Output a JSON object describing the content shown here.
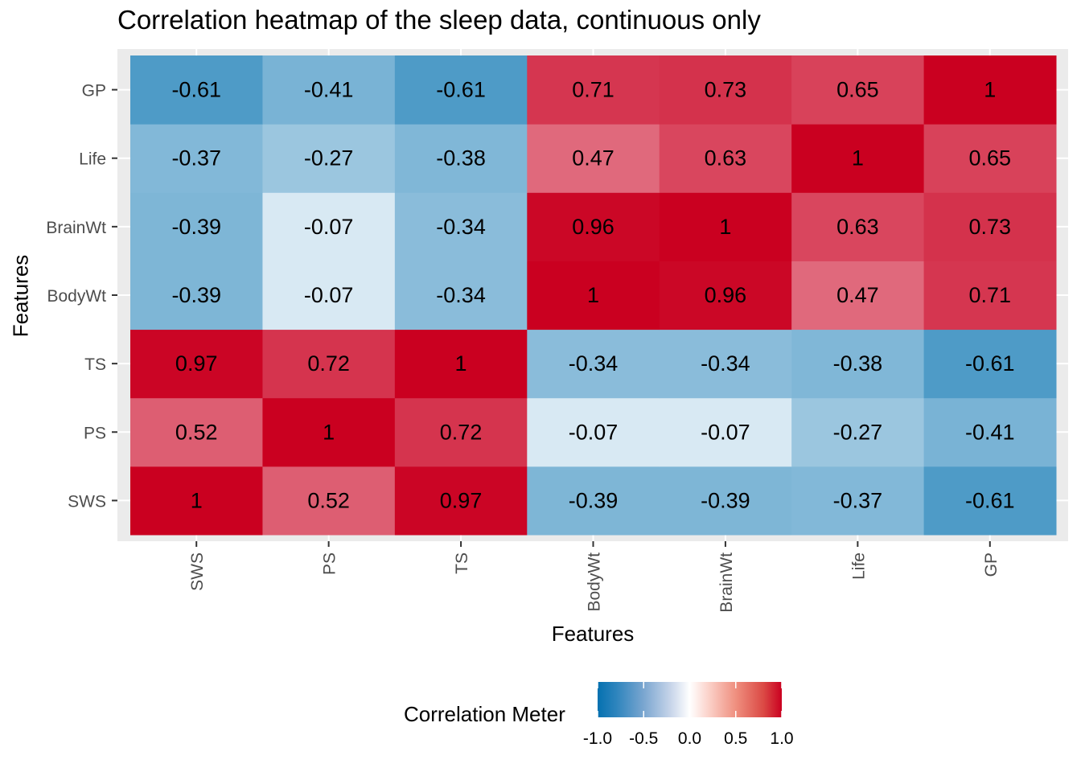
{
  "chart_data": {
    "type": "heatmap",
    "title": "Correlation heatmap of the sleep data, continuous only",
    "xlabel": "Features",
    "ylabel": "Features",
    "x_categories": [
      "SWS",
      "PS",
      "TS",
      "BodyWt",
      "BrainWt",
      "Life",
      "GP"
    ],
    "y_categories": [
      "SWS",
      "PS",
      "TS",
      "BodyWt",
      "BrainWt",
      "Life",
      "GP"
    ],
    "matrix": [
      [
        1,
        0.52,
        0.97,
        -0.39,
        -0.39,
        -0.37,
        -0.61
      ],
      [
        0.52,
        1,
        0.72,
        -0.07,
        -0.07,
        -0.27,
        -0.41
      ],
      [
        0.97,
        0.72,
        1,
        -0.34,
        -0.34,
        -0.38,
        -0.61
      ],
      [
        -0.39,
        -0.07,
        -0.34,
        1,
        0.96,
        0.47,
        0.71
      ],
      [
        -0.39,
        -0.07,
        -0.34,
        0.96,
        1,
        0.63,
        0.73
      ],
      [
        -0.37,
        -0.27,
        -0.38,
        0.47,
        0.63,
        1,
        0.65
      ],
      [
        -0.61,
        -0.41,
        -0.61,
        0.71,
        0.73,
        0.65,
        1
      ]
    ],
    "legend": {
      "title": "Correlation Meter",
      "range": [
        -1,
        1
      ],
      "ticks": [
        "-1.0",
        "-0.5",
        "0.0",
        "0.5",
        "1.0"
      ],
      "low_color": "#0571b0",
      "mid_color": "#ffffff",
      "high_color": "#ca0020",
      "placement": "bottom"
    },
    "grid": true,
    "panel_background": "#ebebeb"
  }
}
